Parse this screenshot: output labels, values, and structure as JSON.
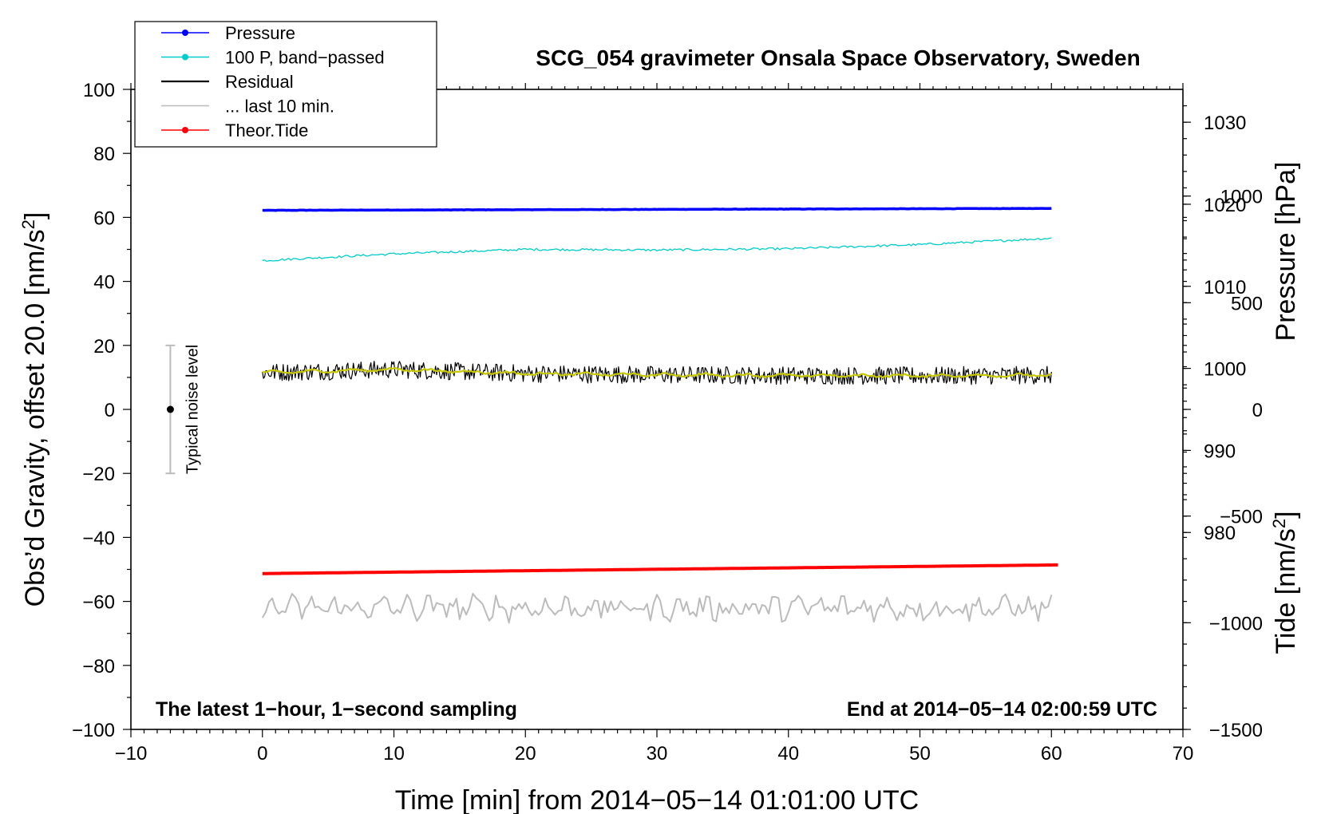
{
  "chart_data": {
    "type": "line",
    "title": "SCG_054 gravimeter Onsala Space Observatory, Sweden",
    "xlabel": "Time [min] from 2014−05−14 01:01:00 UTC",
    "ylabel_main": "Obs’d Gravity, offset 20.0 [nm/s",
    "ylabel_main_sup": "2",
    "ylabel_main_end": "]",
    "ylabel_pressure": "Pressure [hPa]",
    "ylabel_tide": "Tide [nm/s",
    "ylabel_tide_sup": "2",
    "ylabel_tide_end": "]",
    "xlim": [
      -10,
      70
    ],
    "ylim": [
      -100,
      100
    ],
    "x_ticks": [
      "−10",
      "0",
      "10",
      "20",
      "30",
      "40",
      "50",
      "60",
      "70"
    ],
    "x_tick_values": [
      -10,
      0,
      10,
      20,
      30,
      40,
      50,
      60,
      70
    ],
    "y_ticks": [
      "100",
      "80",
      "60",
      "40",
      "20",
      "0",
      "−20",
      "−40",
      "−60",
      "−80",
      "−100"
    ],
    "y_tick_values": [
      100,
      80,
      60,
      40,
      20,
      0,
      -20,
      -40,
      -60,
      -80,
      -100
    ],
    "pressure_axis": {
      "ticks": [
        "1030",
        "1020",
        "1010",
        "1000",
        "990",
        "980"
      ],
      "values": [
        1030,
        1020,
        1010,
        1000,
        990,
        980
      ],
      "ylim": [
        956,
        1034
      ]
    },
    "tide_axis": {
      "ticks": [
        "1000",
        "500",
        "0",
        "−500",
        "−1000",
        "−1500"
      ],
      "values": [
        1000,
        500,
        0,
        -500,
        -1000,
        -1500
      ],
      "ylim": [
        -1500,
        1500
      ]
    },
    "legend": [
      {
        "label": "Pressure",
        "color": "#0000ff",
        "marker": true
      },
      {
        "label": "100 P, band−passed",
        "color": "#00cccc",
        "marker": true
      },
      {
        "label": "Residual",
        "color": "#000000",
        "marker": false
      },
      {
        "label": "... last 10 min.",
        "color": "#bbbbbb",
        "marker": false
      },
      {
        "label": "Theor.Tide",
        "color": "#ff0000",
        "marker": true
      }
    ],
    "series": [
      {
        "name": "Pressure",
        "color": "#0000ff",
        "x_range": [
          0,
          60
        ],
        "start": 62.2,
        "end": 62.8,
        "noise": 0.05,
        "width": 3.5
      },
      {
        "name": "100 P, band−passed",
        "color": "#00cccc",
        "x_range": [
          0,
          60
        ],
        "points": [
          [
            0,
            46.5
          ],
          [
            10,
            48.6
          ],
          [
            20,
            50.0
          ],
          [
            30,
            49.8
          ],
          [
            40,
            50.2
          ],
          [
            50,
            51.5
          ],
          [
            60,
            53.5
          ]
        ],
        "noise": 0.35,
        "width": 1.3
      },
      {
        "name": "Residual",
        "color": "#000000",
        "x_range": [
          0,
          60
        ],
        "points": [
          [
            0,
            11.5
          ],
          [
            10,
            12.5
          ],
          [
            20,
            11.2
          ],
          [
            30,
            10.8
          ],
          [
            40,
            10.6
          ],
          [
            50,
            10.5
          ],
          [
            60,
            10.7
          ]
        ],
        "noise": 2.8,
        "width": 1.2
      },
      {
        "name": "Residual smoothed",
        "color": "#c8c800",
        "x_range": [
          0,
          60
        ],
        "points": [
          [
            0,
            11.5
          ],
          [
            10,
            12.5
          ],
          [
            20,
            11.2
          ],
          [
            30,
            10.8
          ],
          [
            40,
            10.6
          ],
          [
            50,
            10.5
          ],
          [
            60,
            10.7
          ]
        ],
        "noise": 0.6,
        "width": 2.2
      },
      {
        "name": "... last 10 min.",
        "color": "#bbbbbb",
        "x_range": [
          0,
          60
        ],
        "center": -62,
        "noise": 3.2,
        "width": 2
      },
      {
        "name": "Theor.Tide",
        "color": "#ff0000",
        "x_range": [
          0,
          60.5
        ],
        "start": -51.3,
        "end": -48.6,
        "noise": 0.0,
        "width": 4
      }
    ],
    "noise_bar": {
      "label": "Typical noise level",
      "x": -7,
      "center": 0,
      "low": -20,
      "high": 20
    },
    "annotation_left": "The latest 1−hour, 1−second sampling",
    "annotation_right": "End at 2014−05−14 02:00:59 UTC"
  }
}
